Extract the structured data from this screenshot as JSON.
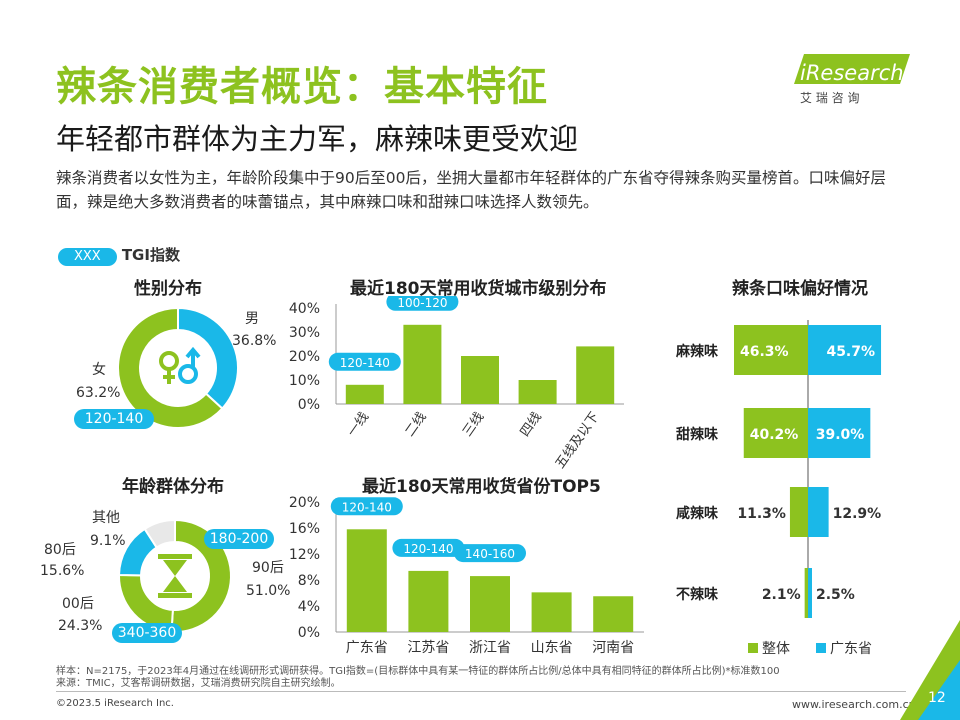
{
  "header": {
    "title": "辣条消费者概览：基本特征",
    "subtitle": "年轻都市群体为主力军，麻辣味更受欢迎",
    "intro": "辣条消费者以女性为主，年龄阶段集中于90后至00后，坐拥大量都市年轻群体的广东省夺得辣条购买量榜首。口味偏好层面，辣是绝大多数消费者的味蕾锚点，其中麻辣口味和甜辣口味选择人数领先。"
  },
  "logo": {
    "brand": "iResearch",
    "tagline": "艾 瑞 咨 询"
  },
  "tgi_legend": {
    "pill": "XXX",
    "label": "TGI指数"
  },
  "colors": {
    "green": "#8dc21f",
    "blue": "#1ab8e8",
    "grey": "#e8e8e8"
  },
  "gender": {
    "title": "性别分布",
    "male_label": "男",
    "male_value": "36.8%",
    "female_label": "女",
    "female_value": "63.2%",
    "tgi": "120-140",
    "icon": "gender-icon"
  },
  "age": {
    "title": "年龄群体分布",
    "items": [
      {
        "label": "90后",
        "value": "51.0%"
      },
      {
        "label": "00后",
        "value": "24.3%"
      },
      {
        "label": "80后",
        "value": "15.6%"
      },
      {
        "label": "其他",
        "value": "9.1%"
      }
    ],
    "tgi_90": "180-200",
    "tgi_00": "340-360",
    "icon": "hourglass-icon"
  },
  "city": {
    "title": "最近180天常用收货城市级别分布",
    "yticks": [
      "40%",
      "30%",
      "20%",
      "10%",
      "0%"
    ]
  },
  "province": {
    "title": "最近180天常用收货省份TOP5",
    "yticks": [
      "20%",
      "16%",
      "12%",
      "8%",
      "4%",
      "0%"
    ]
  },
  "taste": {
    "title": "辣条口味偏好情况",
    "legend_overall": "整体",
    "legend_gd": "广东省"
  },
  "chart_data": [
    {
      "type": "pie",
      "title": "性别分布",
      "categories": [
        "男",
        "女"
      ],
      "values": [
        36.8,
        63.2
      ]
    },
    {
      "type": "pie",
      "title": "年龄群体分布",
      "categories": [
        "90后",
        "00后",
        "80后",
        "其他"
      ],
      "values": [
        51.0,
        24.3,
        15.6,
        9.1
      ]
    },
    {
      "type": "bar",
      "title": "最近180天常用收货城市级别分布",
      "categories": [
        "一线",
        "二线",
        "三线",
        "四线",
        "五线及以下"
      ],
      "values": [
        8,
        33,
        20,
        10,
        24
      ],
      "ylim": [
        0,
        40
      ],
      "tgi": {
        "一线": "120-140",
        "二线": "100-120"
      }
    },
    {
      "type": "bar",
      "title": "最近180天常用收货省份TOP5",
      "categories": [
        "广东省",
        "江苏省",
        "浙江省",
        "山东省",
        "河南省"
      ],
      "values": [
        15.8,
        9.4,
        8.6,
        6.1,
        5.5
      ],
      "ylim": [
        0,
        20
      ],
      "tgi": {
        "广东省": "120-140",
        "江苏省": "120-140",
        "浙江省": "140-160"
      }
    },
    {
      "type": "bar",
      "title": "辣条口味偏好情况",
      "categories": [
        "麻辣味",
        "甜辣味",
        "咸辣味",
        "不辣味"
      ],
      "series": [
        {
          "name": "整体",
          "values": [
            46.3,
            40.2,
            11.3,
            2.1
          ]
        },
        {
          "name": "广东省",
          "values": [
            45.7,
            39.0,
            12.9,
            2.5
          ]
        }
      ]
    }
  ],
  "footer": {
    "note1": "样本：N=2175，于2023年4月通过在线调研形式调研获得。TGI指数=(目标群体中具有某一特征的群体所占比例/总体中具有相同特征的群体所占比例)*标准数100",
    "note2": "来源：TMIC，艾客帮调研数据，艾瑞消费研究院自主研究绘制。",
    "copyright": "©2023.5 iResearch Inc.",
    "site": "www.iresearch.com.cn",
    "page": "12"
  }
}
